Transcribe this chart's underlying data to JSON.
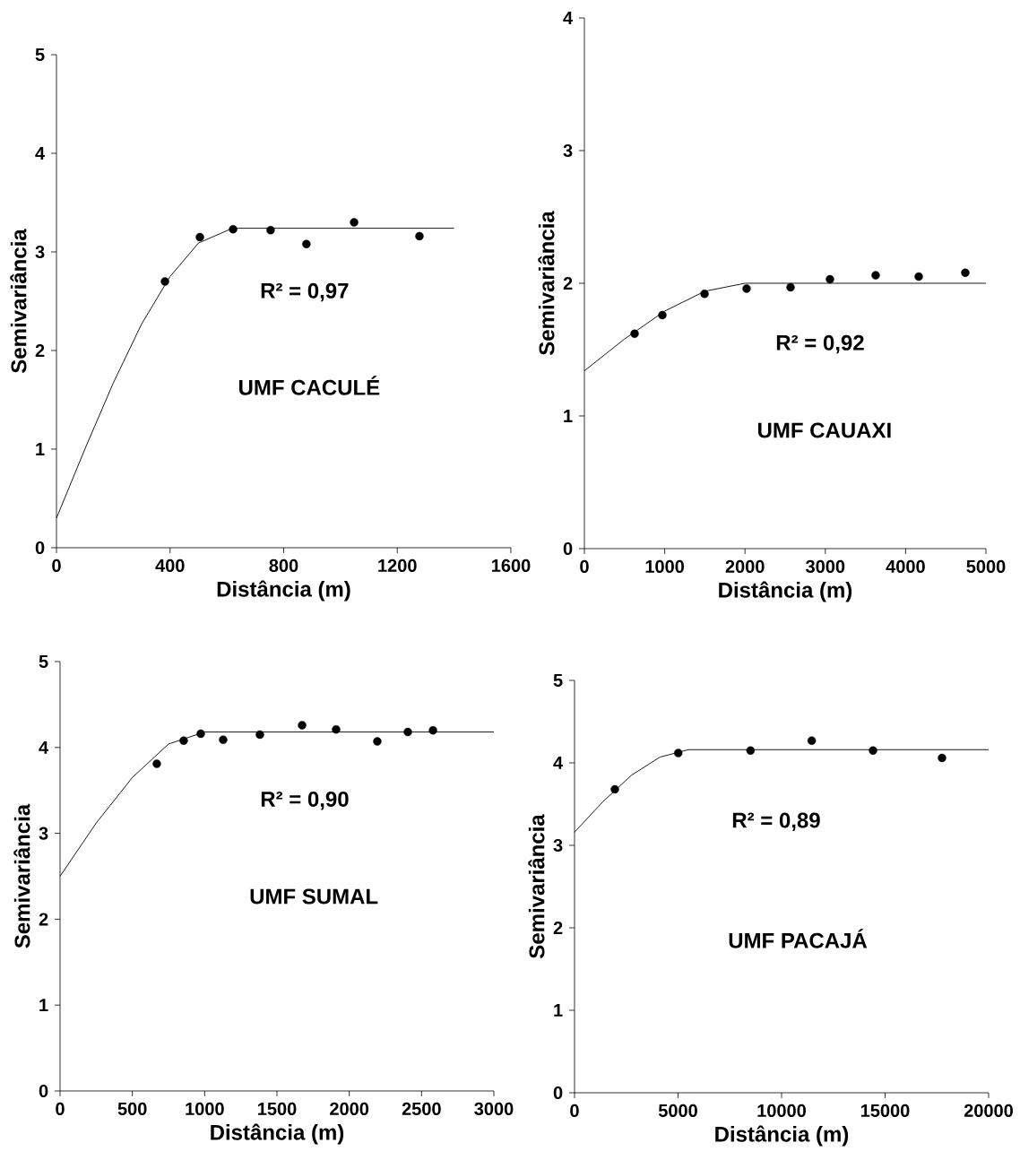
{
  "chart_data": [
    {
      "type": "scatter",
      "xlabel": "Distância (m)",
      "ylabel": "Semivariância",
      "xlim": [
        0,
        1600
      ],
      "ylim": [
        0,
        5
      ],
      "xticks": [
        0,
        400,
        800,
        1200,
        1600
      ],
      "yticks": [
        0,
        1,
        2,
        3,
        4,
        5
      ],
      "marker": "circle",
      "annotations": [
        "R² = 0,97",
        "UMF CACULÉ"
      ],
      "series": [
        {
          "color": "#000000",
          "x": [
            382,
            505,
            622,
            754,
            880,
            1048,
            1278
          ],
          "values": [
            2.7,
            3.15,
            3.23,
            3.22,
            3.08,
            3.3,
            3.16
          ]
        },
        {
          "type": "line",
          "color": "#000000",
          "marker": "none",
          "line_style": "solid",
          "x": [
            0,
            100,
            200,
            300,
            400,
            500,
            620,
            1400
          ],
          "values": [
            0.3,
            1.0,
            1.67,
            2.27,
            2.75,
            3.09,
            3.24,
            3.24
          ]
        }
      ]
    },
    {
      "type": "scatter",
      "xlabel": "Distância (m)",
      "ylabel": "Semivariância",
      "xlim": [
        0,
        5000
      ],
      "ylim": [
        0,
        4
      ],
      "xticks": [
        0,
        1000,
        2000,
        3000,
        4000,
        5000
      ],
      "yticks": [
        0,
        1,
        2,
        3,
        4
      ],
      "marker": "circle",
      "annotations": [
        "R² = 0,92",
        "UMF CAUAXI"
      ],
      "series": [
        {
          "color": "#000000",
          "x": [
            625,
            971,
            1496,
            2020,
            2567,
            3058,
            3627,
            4163,
            4743
          ],
          "values": [
            1.62,
            1.76,
            1.92,
            1.96,
            1.97,
            2.03,
            2.06,
            2.05,
            2.08
          ]
        },
        {
          "type": "line",
          "color": "#000000",
          "marker": "none",
          "line_style": "solid",
          "x": [
            0,
            500,
            1000,
            1500,
            2000,
            5000
          ],
          "values": [
            1.34,
            1.58,
            1.79,
            1.94,
            2.0,
            2.0
          ]
        }
      ]
    },
    {
      "type": "scatter",
      "xlabel": "Distância (m)",
      "ylabel": "Semivariância",
      "xlim": [
        0,
        3000
      ],
      "ylim": [
        0,
        5
      ],
      "xticks": [
        0,
        500,
        1000,
        1500,
        2000,
        2500,
        3000
      ],
      "yticks": [
        0,
        1,
        2,
        3,
        4,
        5
      ],
      "marker": "circle",
      "annotations": [
        "R² = 0,90",
        "UMF SUMAL"
      ],
      "series": [
        {
          "color": "#000000",
          "x": [
            669,
            855,
            973,
            1128,
            1382,
            1674,
            1909,
            2194,
            2405,
            2579
          ],
          "values": [
            3.81,
            4.08,
            4.16,
            4.09,
            4.15,
            4.26,
            4.21,
            4.07,
            4.18,
            4.2
          ]
        },
        {
          "type": "line",
          "color": "#000000",
          "marker": "none",
          "line_style": "solid",
          "x": [
            0,
            250,
            500,
            750,
            1000,
            3000
          ],
          "values": [
            2.5,
            3.12,
            3.65,
            4.04,
            4.18,
            4.18
          ]
        }
      ]
    },
    {
      "type": "scatter",
      "xlabel": "Distância (m)",
      "ylabel": "Semivariância",
      "xlim": [
        0,
        20000
      ],
      "ylim": [
        0,
        5
      ],
      "xticks": [
        0,
        5000,
        10000,
        15000,
        20000
      ],
      "yticks": [
        0,
        1,
        2,
        3,
        4,
        5
      ],
      "marker": "circle",
      "annotations": [
        "R² = 0,89",
        "UMF PACAJÁ"
      ],
      "series": [
        {
          "color": "#000000",
          "x": [
            1948,
            5009,
            8500,
            11457,
            14416,
            17749
          ],
          "values": [
            3.68,
            4.12,
            4.15,
            4.27,
            4.15,
            4.06
          ]
        },
        {
          "type": "line",
          "color": "#000000",
          "marker": "none",
          "line_style": "solid",
          "x": [
            0,
            1375,
            2750,
            4125,
            5500,
            20000
          ],
          "values": [
            3.16,
            3.53,
            3.85,
            4.07,
            4.16,
            4.16
          ]
        }
      ]
    }
  ]
}
